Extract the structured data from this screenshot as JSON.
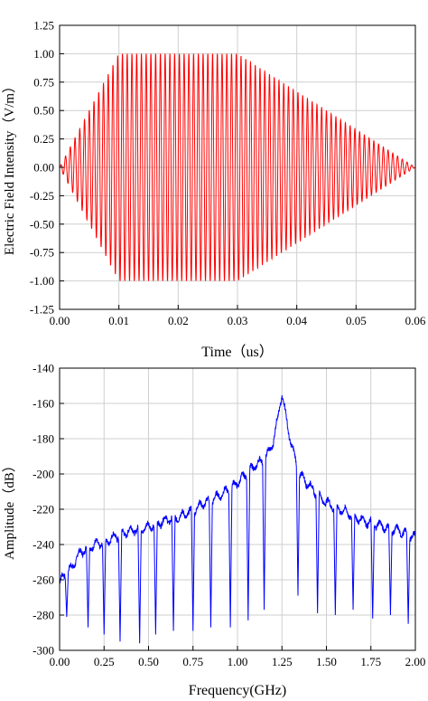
{
  "chart_data": [
    {
      "type": "line",
      "title": "",
      "xlabel": "Time（us）",
      "ylabel": "Electric Field Intensity（V/m）",
      "xlim": [
        0,
        0.06
      ],
      "ylim": [
        -1.25,
        1.25
      ],
      "grid": true,
      "series": [
        {
          "color": "#ff0000",
          "kind": "amplitude-modulated sinusoid (filled envelope)",
          "envelope_x": [
            0,
            0.01,
            0.03,
            0.06
          ],
          "envelope_y": [
            0,
            1.0,
            1.0,
            0
          ],
          "oscillations": 75
        }
      ],
      "xticks": [
        "0.00",
        "0.01",
        "0.02",
        "0.03",
        "0.04",
        "0.05",
        "0.06"
      ],
      "yticks": [
        "1.25",
        "1.00",
        "0.75",
        "0.50",
        "0.25",
        "0.00",
        "-0.25",
        "-0.50",
        "-0.75",
        "-1.00",
        "-1.25"
      ]
    },
    {
      "type": "line",
      "title": "",
      "xlabel": "Frequency(GHz)",
      "ylabel": "Amplitude（dB）",
      "xlim": [
        0,
        2.0
      ],
      "ylim": [
        -300,
        -140
      ],
      "grid": true,
      "series": [
        {
          "color": "#0000ff",
          "x": [
            0.0,
            0.02,
            0.04,
            0.06,
            0.08,
            0.1,
            0.12,
            0.16,
            0.2,
            0.25,
            0.3,
            0.35,
            0.4,
            0.45,
            0.5,
            0.55,
            0.6,
            0.65,
            0.7,
            0.75,
            0.8,
            0.85,
            0.9,
            0.95,
            1.0,
            1.05,
            1.1,
            1.15,
            1.18,
            1.2,
            1.22,
            1.24,
            1.25,
            1.26,
            1.28,
            1.3,
            1.32,
            1.35,
            1.4,
            1.45,
            1.5,
            1.55,
            1.6,
            1.65,
            1.7,
            1.75,
            1.8,
            1.85,
            1.9,
            1.95,
            2.0
          ],
          "y": [
            -262,
            -258,
            -256,
            -254,
            -251,
            -247,
            -244,
            -242,
            -240,
            -239,
            -236,
            -234,
            -232,
            -231,
            -230,
            -228,
            -226,
            -225,
            -223,
            -221,
            -217,
            -215,
            -212,
            -209,
            -205,
            -200,
            -195,
            -192,
            -187,
            -182,
            -172,
            -160,
            -155,
            -160,
            -172,
            -182,
            -190,
            -200,
            -206,
            -212,
            -216,
            -219,
            -221,
            -224,
            -226,
            -228,
            -229,
            -231,
            -232,
            -234,
            -236
          ],
          "notches": [
            [
              0.04,
              -281
            ],
            [
              0.16,
              -287
            ],
            [
              0.25,
              -291
            ],
            [
              0.34,
              -295
            ],
            [
              0.45,
              -296
            ],
            [
              0.54,
              -291
            ],
            [
              0.64,
              -289
            ],
            [
              0.75,
              -289
            ],
            [
              0.85,
              -287
            ],
            [
              0.96,
              -287
            ],
            [
              1.06,
              -283
            ],
            [
              1.15,
              -277
            ],
            [
              1.34,
              -269
            ],
            [
              1.45,
              -279
            ],
            [
              1.55,
              -280
            ],
            [
              1.65,
              -277
            ],
            [
              1.76,
              -282
            ],
            [
              1.86,
              -280
            ],
            [
              1.96,
              -285
            ]
          ]
        }
      ],
      "xticks": [
        "0.00",
        "0.25",
        "0.50",
        "0.75",
        "1.00",
        "1.25",
        "1.50",
        "1.75",
        "2.00"
      ],
      "yticks": [
        "-140",
        "-160",
        "-180",
        "-200",
        "-220",
        "-240",
        "-260",
        "-280",
        "-300"
      ]
    }
  ]
}
